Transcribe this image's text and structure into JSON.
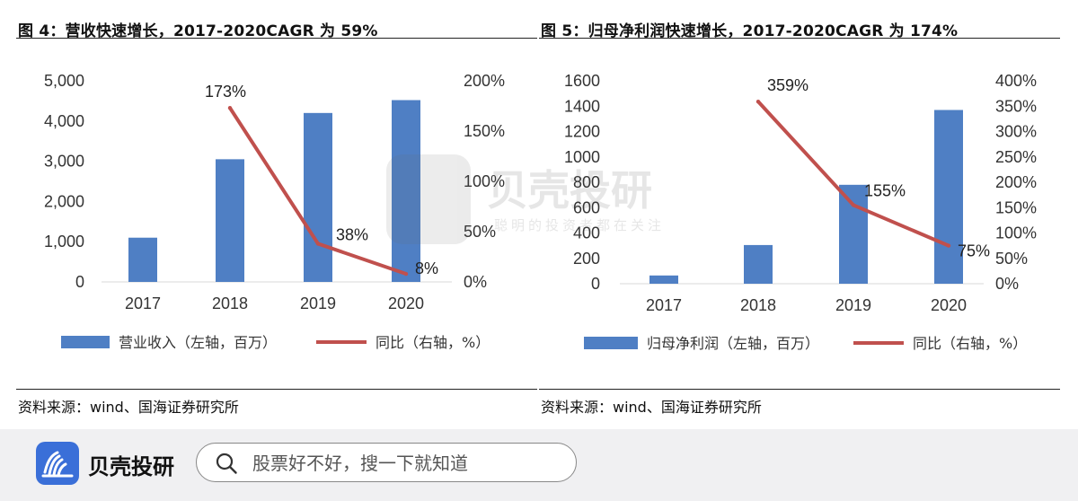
{
  "charts": [
    {
      "id": "fig4",
      "fig_title": "图 4：营收快速增长，2017-2020CAGR 为 59%",
      "source": "资料来源：wind、国海证券研究所",
      "legend_bar": "营业收入（左轴，百万）",
      "legend_line": "同比（右轴，%）",
      "left_ticks": [
        "0",
        "1,000",
        "2,000",
        "3,000",
        "4,000",
        "5,000"
      ],
      "right_ticks": [
        "0%",
        "50%",
        "100%",
        "150%",
        "200%"
      ]
    },
    {
      "id": "fig5",
      "fig_title": "图 5：归母净利润快速增长，2017-2020CAGR 为 174%",
      "source": "资料来源：wind、国海证券研究所",
      "legend_bar": "归母净利润（左轴，百万）",
      "legend_line": "同比（右轴，%）",
      "left_ticks": [
        "0",
        "200",
        "400",
        "600",
        "800",
        "1000",
        "1200",
        "1400",
        "1600"
      ],
      "right_ticks": [
        "0%",
        "50%",
        "100%",
        "150%",
        "200%",
        "250%",
        "300%",
        "350%",
        "400%"
      ]
    }
  ],
  "chart_data": [
    {
      "type": "bar",
      "title": "图 4：营收快速增长，2017-2020CAGR 为 59%",
      "categories": [
        "2017",
        "2018",
        "2019",
        "2020"
      ],
      "series": [
        {
          "name": "营业收入（左轴，百万）",
          "type": "bar",
          "axis": "left",
          "values": [
            1100,
            3050,
            4200,
            4520
          ]
        },
        {
          "name": "同比（右轴，%）",
          "type": "line",
          "axis": "right",
          "values": [
            null,
            173,
            38,
            8
          ],
          "labels": [
            "",
            "173%",
            "38%",
            "8%"
          ]
        }
      ],
      "ylim_left": [
        0,
        5000
      ],
      "ylim_right": [
        0,
        200
      ],
      "grid": false,
      "legend": "bottom",
      "colors": {
        "bar": "#4f7fc4",
        "line": "#c0504d"
      }
    },
    {
      "type": "bar",
      "title": "图 5：归母净利润快速增长，2017-2020CAGR 为 174%",
      "categories": [
        "2017",
        "2018",
        "2019",
        "2020"
      ],
      "series": [
        {
          "name": "归母净利润（左轴，百万）",
          "type": "bar",
          "axis": "left",
          "values": [
            65,
            305,
            780,
            1370
          ]
        },
        {
          "name": "同比（右轴，%）",
          "type": "line",
          "axis": "right",
          "values": [
            null,
            359,
            155,
            75
          ],
          "labels": [
            "",
            "359%",
            "155%",
            "75%"
          ]
        }
      ],
      "ylim_left": [
        0,
        1600
      ],
      "ylim_right": [
        0,
        400
      ],
      "grid": false,
      "legend": "bottom",
      "colors": {
        "bar": "#4f7fc4",
        "line": "#c0504d"
      }
    }
  ],
  "watermark": {
    "name": "贝壳投研",
    "slogan": "聪明的投资者都在关注"
  },
  "footer": {
    "brand_name": "贝壳投研",
    "search_placeholder": "股票好不好，搜一下就知道",
    "logo_color": "#3a6fd8"
  }
}
